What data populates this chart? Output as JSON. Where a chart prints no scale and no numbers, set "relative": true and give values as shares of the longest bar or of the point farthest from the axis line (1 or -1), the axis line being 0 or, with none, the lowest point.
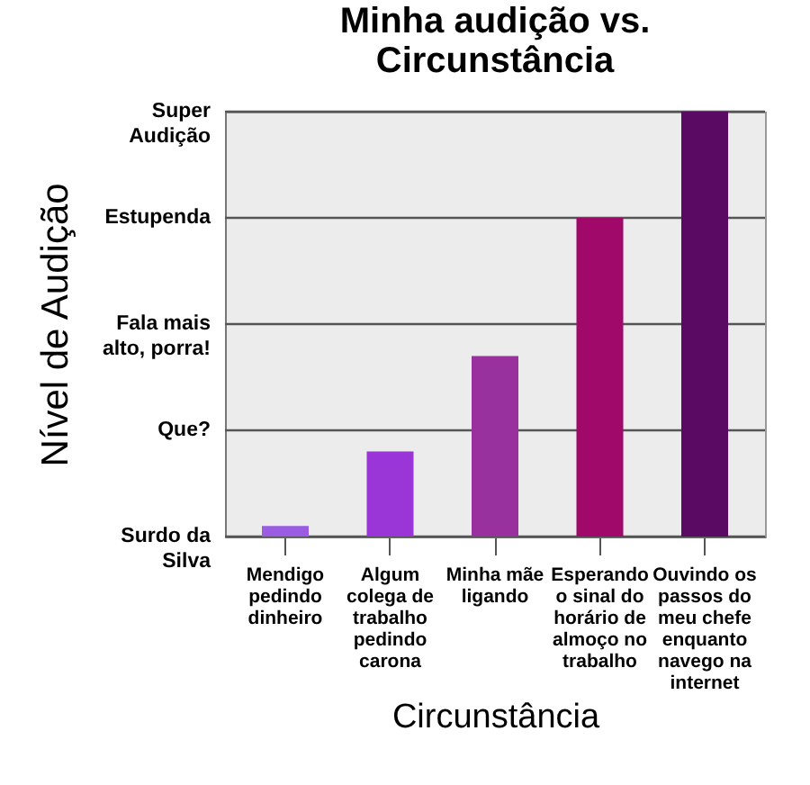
{
  "chart_data": {
    "type": "bar",
    "title": "Minha audição vs. Circunstância",
    "xlabel": "Circunstância",
    "ylabel": "Nível de Audição",
    "categories": [
      "Mendigo pedindo dinheiro",
      "Algum colega de trabalho pedindo carona",
      "Minha mãe ligando",
      "Esperando o sinal do horário de almoço no trabalho",
      "Ouvindo os passos do meu chefe enquanto navego na internet"
    ],
    "values": [
      0.025,
      0.2,
      0.425,
      0.75,
      1
    ],
    "colors": [
      "#9a5ce0",
      "#9a36d8",
      "#98309e",
      "#a0086a",
      "#5a0a62"
    ],
    "relative": true,
    "annotations": [
      "Surdo da Silva",
      "Que?",
      "Fala mais alto, porra!",
      "Estupenda",
      "Super Audição"
    ],
    "grid": "y"
  }
}
